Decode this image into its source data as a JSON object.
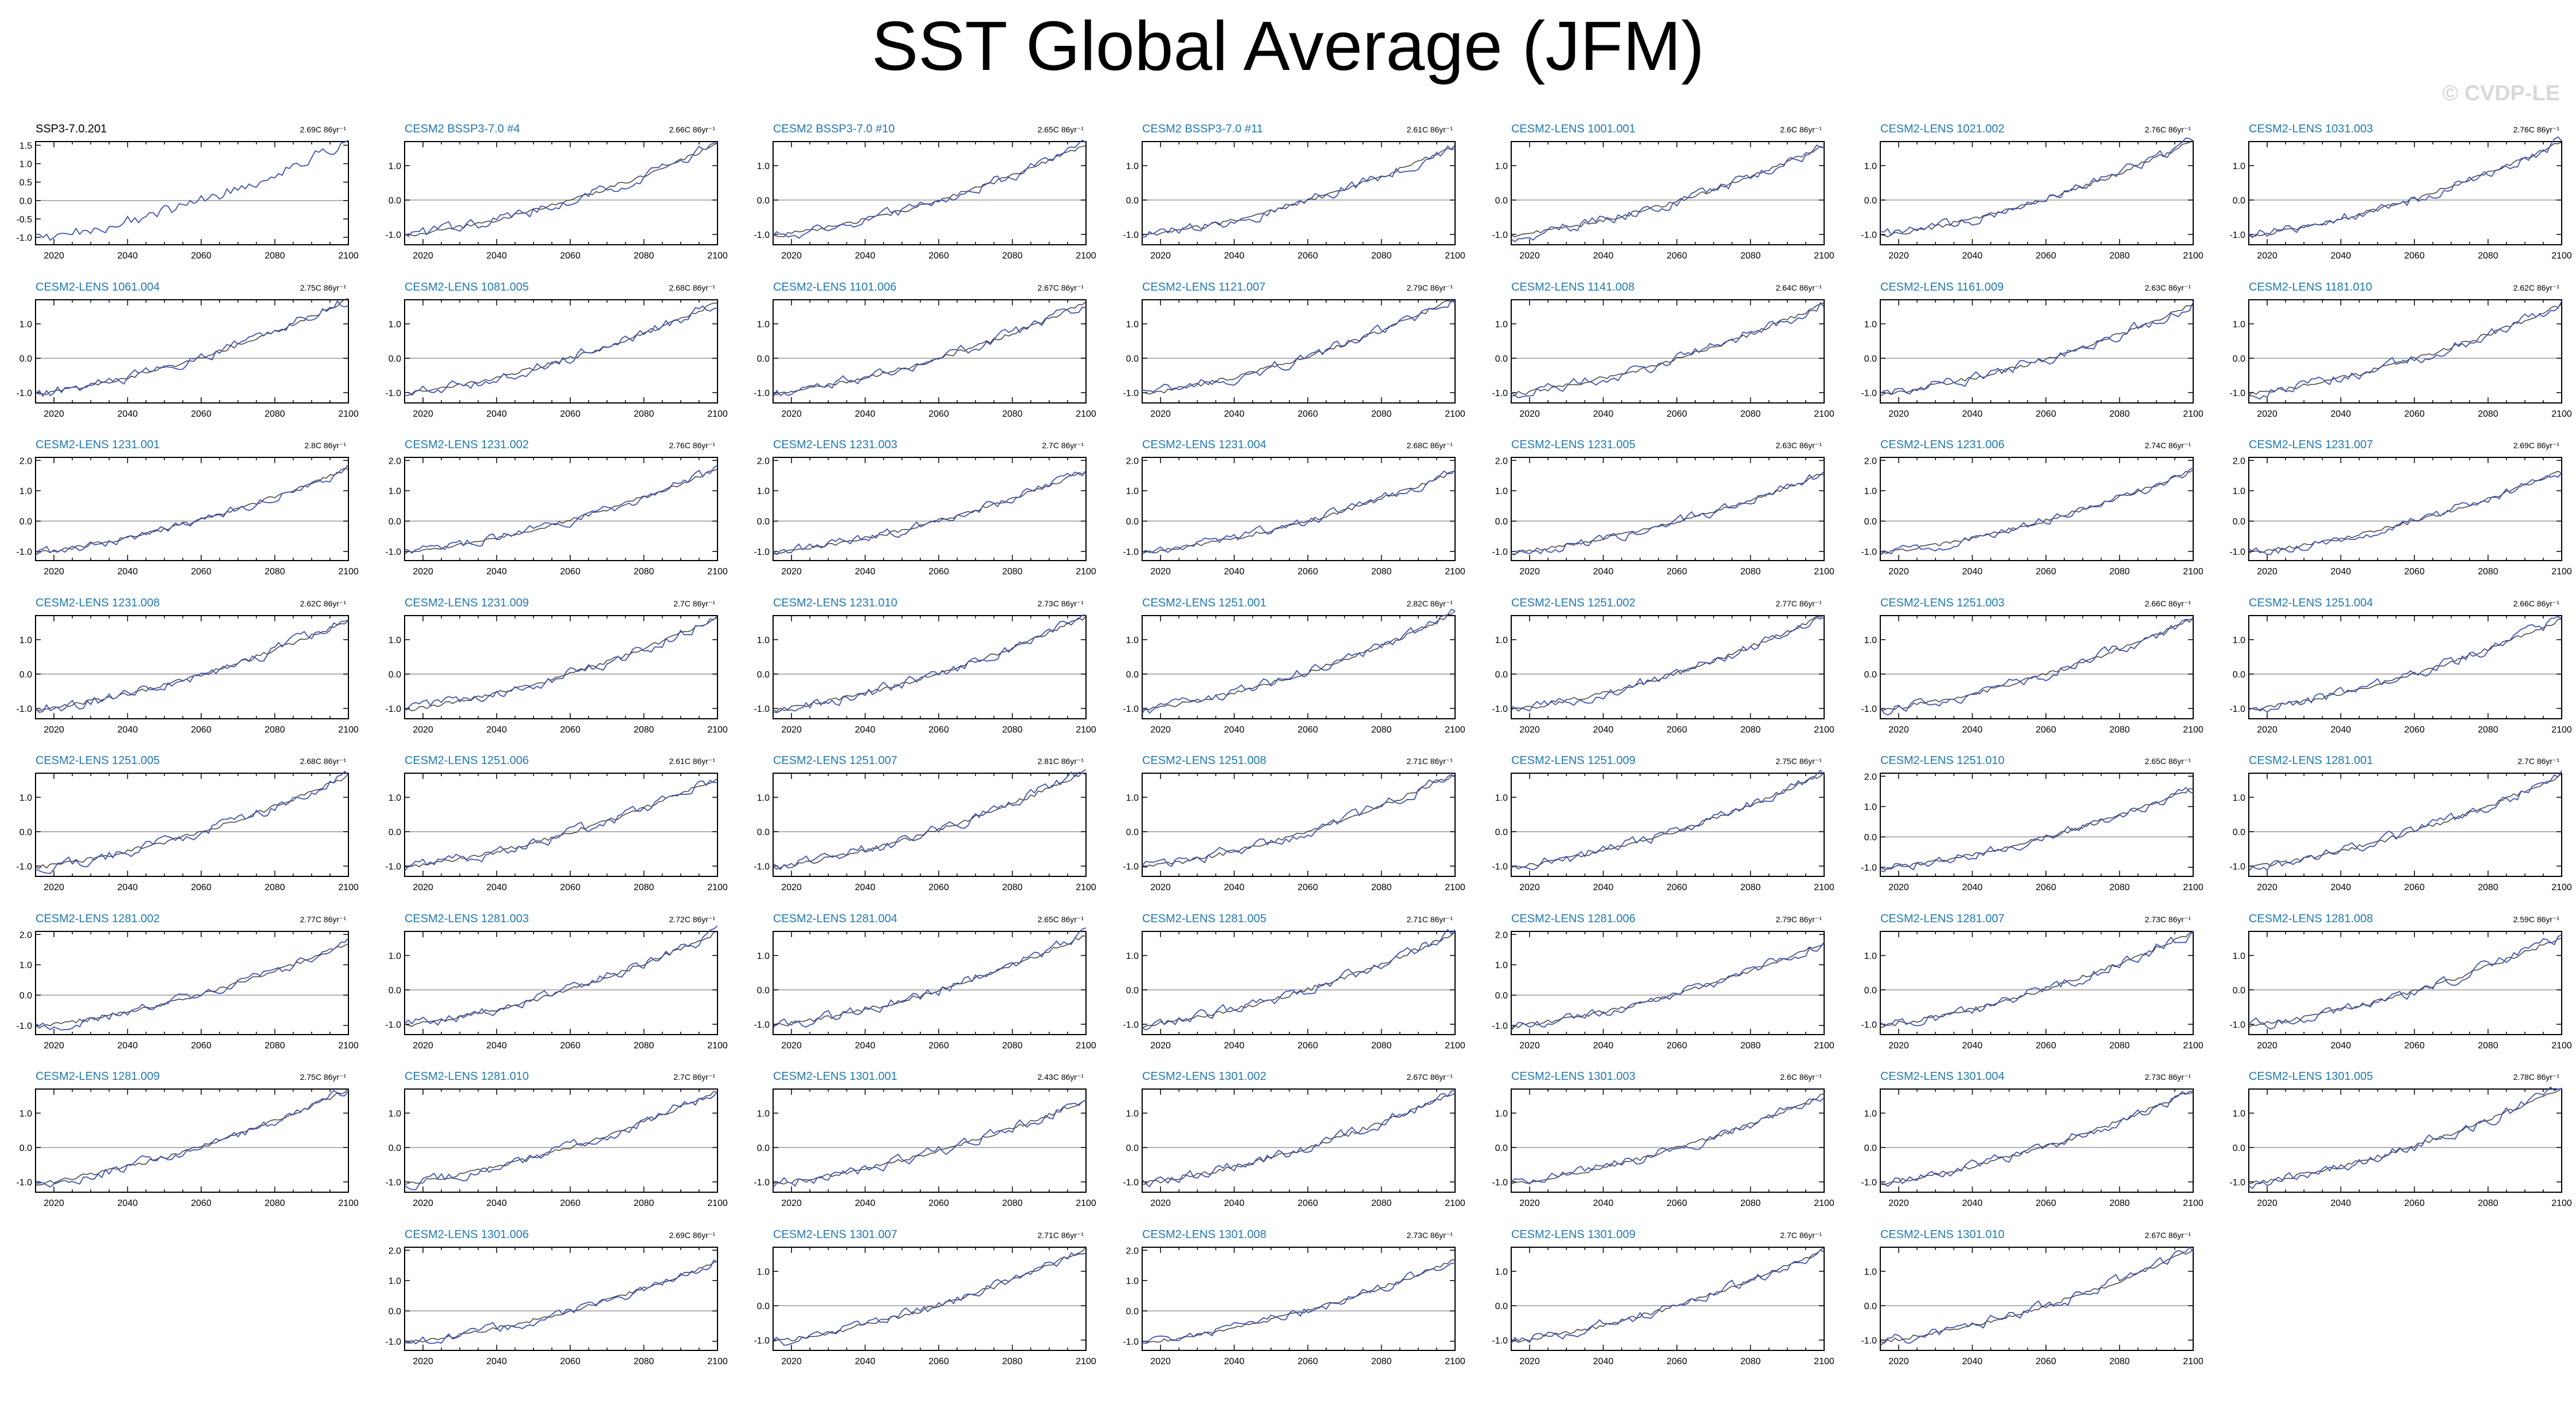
{
  "title": "SST Global Average (JFM)",
  "watermark": "© CVDP-LE",
  "colors": {
    "model_line": "#3f51b5",
    "mean_line": "#333333",
    "title_obs": "#000000",
    "title_model": "#1f78b4",
    "zero_line": "#999999"
  },
  "chart_data": {
    "type": "line",
    "panel_layout": {
      "columns": 7,
      "rows": 8
    },
    "x_ticks": [
      2020,
      2040,
      2060,
      2080,
      2100
    ],
    "xlim": [
      2015,
      2100
    ],
    "trend_unit": "C 86yr⁻¹",
    "series_names": [],
    "panels": [
      {
        "title": "SSP3-7.0.201",
        "trend": "2.69C",
        "yticks": [
          "1.5",
          "1.0",
          "0.5",
          "0.0",
          "-0.5",
          "-1.0"
        ],
        "ylim": [
          -1.2,
          1.6
        ],
        "obs": true
      },
      {
        "title": "CESM2 BSSP3-7.0 #4",
        "trend": "2.66C",
        "yticks": [
          "1.0",
          "0.0",
          "-1.0"
        ],
        "ylim": [
          -1.3,
          1.7
        ]
      },
      {
        "title": "CESM2 BSSP3-7.0 #10",
        "trend": "2.65C",
        "yticks": [
          "1.0",
          "0.0",
          "-1.0"
        ],
        "ylim": [
          -1.3,
          1.7
        ]
      },
      {
        "title": "CESM2 BSSP3-7.0 #11",
        "trend": "2.61C",
        "yticks": [
          "1.0",
          "0.0",
          "-1.0"
        ],
        "ylim": [
          -1.3,
          1.7
        ]
      },
      {
        "title": "CESM2-LENS 1001.001",
        "trend": "2.6C",
        "yticks": [
          "1.0",
          "0.0",
          "-1.0"
        ],
        "ylim": [
          -1.3,
          1.7
        ]
      },
      {
        "title": "CESM2-LENS 1021.002",
        "trend": "2.76C",
        "yticks": [
          "1.0",
          "0.0",
          "-1.0"
        ],
        "ylim": [
          -1.3,
          1.7
        ]
      },
      {
        "title": "CESM2-LENS 1031.003",
        "trend": "2.76C",
        "yticks": [
          "1.0",
          "0.0",
          "-1.0"
        ],
        "ylim": [
          -1.3,
          1.7
        ]
      },
      {
        "title": "CESM2-LENS 1061.004",
        "trend": "2.75C",
        "yticks": [
          "1.0",
          "0.0",
          "-1.0"
        ],
        "ylim": [
          -1.3,
          1.7
        ]
      },
      {
        "title": "CESM2-LENS 1081.005",
        "trend": "2.68C",
        "yticks": [
          "1.0",
          "0.0",
          "-1.0"
        ],
        "ylim": [
          -1.3,
          1.7
        ]
      },
      {
        "title": "CESM2-LENS 1101.006",
        "trend": "2.67C",
        "yticks": [
          "1.0",
          "0.0",
          "-1.0"
        ],
        "ylim": [
          -1.3,
          1.7
        ]
      },
      {
        "title": "CESM2-LENS 1121.007",
        "trend": "2.79C",
        "yticks": [
          "1.0",
          "0.0",
          "-1.0"
        ],
        "ylim": [
          -1.3,
          1.7
        ]
      },
      {
        "title": "CESM2-LENS 1141.008",
        "trend": "2.64C",
        "yticks": [
          "1.0",
          "0.0",
          "-1.0"
        ],
        "ylim": [
          -1.3,
          1.7
        ]
      },
      {
        "title": "CESM2-LENS 1161.009",
        "trend": "2.63C",
        "yticks": [
          "1.0",
          "0.0",
          "-1.0"
        ],
        "ylim": [
          -1.3,
          1.7
        ]
      },
      {
        "title": "CESM2-LENS 1181.010",
        "trend": "2.62C",
        "yticks": [
          "1.0",
          "0.0",
          "-1.0"
        ],
        "ylim": [
          -1.3,
          1.7
        ]
      },
      {
        "title": "CESM2-LENS 1231.001",
        "trend": "2.8C",
        "yticks": [
          "2.0",
          "1.0",
          "0.0",
          "-1.0"
        ],
        "ylim": [
          -1.3,
          2.1
        ]
      },
      {
        "title": "CESM2-LENS 1231.002",
        "trend": "2.76C",
        "yticks": [
          "2.0",
          "1.0",
          "0.0",
          "-1.0"
        ],
        "ylim": [
          -1.3,
          2.1
        ]
      },
      {
        "title": "CESM2-LENS 1231.003",
        "trend": "2.7C",
        "yticks": [
          "2.0",
          "1.0",
          "0.0",
          "-1.0"
        ],
        "ylim": [
          -1.3,
          2.1
        ]
      },
      {
        "title": "CESM2-LENS 1231.004",
        "trend": "2.68C",
        "yticks": [
          "2.0",
          "1.0",
          "0.0",
          "-1.0"
        ],
        "ylim": [
          -1.3,
          2.1
        ]
      },
      {
        "title": "CESM2-LENS 1231.005",
        "trend": "2.63C",
        "yticks": [
          "2.0",
          "1.0",
          "0.0",
          "-1.0"
        ],
        "ylim": [
          -1.3,
          2.1
        ]
      },
      {
        "title": "CESM2-LENS 1231.006",
        "trend": "2.74C",
        "yticks": [
          "2.0",
          "1.0",
          "0.0",
          "-1.0"
        ],
        "ylim": [
          -1.3,
          2.1
        ]
      },
      {
        "title": "CESM2-LENS 1231.007",
        "trend": "2.69C",
        "yticks": [
          "2.0",
          "1.0",
          "0.0",
          "-1.0"
        ],
        "ylim": [
          -1.3,
          2.1
        ]
      },
      {
        "title": "CESM2-LENS 1231.008",
        "trend": "2.62C",
        "yticks": [
          "1.0",
          "0.0",
          "-1.0"
        ],
        "ylim": [
          -1.3,
          1.7
        ]
      },
      {
        "title": "CESM2-LENS 1231.009",
        "trend": "2.7C",
        "yticks": [
          "1.0",
          "0.0",
          "-1.0"
        ],
        "ylim": [
          -1.3,
          1.7
        ]
      },
      {
        "title": "CESM2-LENS 1231.010",
        "trend": "2.73C",
        "yticks": [
          "1.0",
          "0.0",
          "-1.0"
        ],
        "ylim": [
          -1.3,
          1.7
        ]
      },
      {
        "title": "CESM2-LENS 1251.001",
        "trend": "2.82C",
        "yticks": [
          "1.0",
          "0.0",
          "-1.0"
        ],
        "ylim": [
          -1.3,
          1.7
        ]
      },
      {
        "title": "CESM2-LENS 1251.002",
        "trend": "2.77C",
        "yticks": [
          "1.0",
          "0.0",
          "-1.0"
        ],
        "ylim": [
          -1.3,
          1.7
        ]
      },
      {
        "title": "CESM2-LENS 1251.003",
        "trend": "2.66C",
        "yticks": [
          "1.0",
          "0.0",
          "-1.0"
        ],
        "ylim": [
          -1.3,
          1.7
        ]
      },
      {
        "title": "CESM2-LENS 1251.004",
        "trend": "2.66C",
        "yticks": [
          "1.0",
          "0.0",
          "-1.0"
        ],
        "ylim": [
          -1.3,
          1.7
        ]
      },
      {
        "title": "CESM2-LENS 1251.005",
        "trend": "2.68C",
        "yticks": [
          "1.0",
          "0.0",
          "-1.0"
        ],
        "ylim": [
          -1.3,
          1.7
        ]
      },
      {
        "title": "CESM2-LENS 1251.006",
        "trend": "2.61C",
        "yticks": [
          "1.0",
          "0.0",
          "-1.0"
        ],
        "ylim": [
          -1.3,
          1.7
        ]
      },
      {
        "title": "CESM2-LENS 1251.007",
        "trend": "2.81C",
        "yticks": [
          "1.0",
          "0.0",
          "-1.0"
        ],
        "ylim": [
          -1.3,
          1.7
        ]
      },
      {
        "title": "CESM2-LENS 1251.008",
        "trend": "2.71C",
        "yticks": [
          "1.0",
          "0.0",
          "-1.0"
        ],
        "ylim": [
          -1.3,
          1.7
        ]
      },
      {
        "title": "CESM2-LENS 1251.009",
        "trend": "2.75C",
        "yticks": [
          "1.0",
          "0.0",
          "-1.0"
        ],
        "ylim": [
          -1.3,
          1.7
        ]
      },
      {
        "title": "CESM2-LENS 1251.010",
        "trend": "2.65C",
        "yticks": [
          "2.0",
          "1.0",
          "0.0",
          "-1.0"
        ],
        "ylim": [
          -1.3,
          2.1
        ]
      },
      {
        "title": "CESM2-LENS 1281.001",
        "trend": "2.7C",
        "yticks": [
          "1.0",
          "0.0",
          "-1.0"
        ],
        "ylim": [
          -1.3,
          1.7
        ]
      },
      {
        "title": "CESM2-LENS 1281.002",
        "trend": "2.77C",
        "yticks": [
          "2.0",
          "1.0",
          "0.0",
          "-1.0"
        ],
        "ylim": [
          -1.3,
          2.1
        ]
      },
      {
        "title": "CESM2-LENS 1281.003",
        "trend": "2.72C",
        "yticks": [
          "1.0",
          "0.0",
          "-1.0"
        ],
        "ylim": [
          -1.3,
          1.7
        ]
      },
      {
        "title": "CESM2-LENS 1281.004",
        "trend": "2.65C",
        "yticks": [
          "1.0",
          "0.0",
          "-1.0"
        ],
        "ylim": [
          -1.3,
          1.7
        ]
      },
      {
        "title": "CESM2-LENS 1281.005",
        "trend": "2.71C",
        "yticks": [
          "1.0",
          "0.0",
          "-1.0"
        ],
        "ylim": [
          -1.3,
          1.7
        ]
      },
      {
        "title": "CESM2-LENS 1281.006",
        "trend": "2.79C",
        "yticks": [
          "2.0",
          "1.0",
          "0.0",
          "-1.0"
        ],
        "ylim": [
          -1.3,
          2.1
        ]
      },
      {
        "title": "CESM2-LENS 1281.007",
        "trend": "2.73C",
        "yticks": [
          "1.0",
          "0.0",
          "-1.0"
        ],
        "ylim": [
          -1.3,
          1.7
        ]
      },
      {
        "title": "CESM2-LENS 1281.008",
        "trend": "2.59C",
        "yticks": [
          "1.0",
          "0.0",
          "-1.0"
        ],
        "ylim": [
          -1.3,
          1.7
        ]
      },
      {
        "title": "CESM2-LENS 1281.009",
        "trend": "2.75C",
        "yticks": [
          "1.0",
          "0.0",
          "-1.0"
        ],
        "ylim": [
          -1.3,
          1.7
        ]
      },
      {
        "title": "CESM2-LENS 1281.010",
        "trend": "2.7C",
        "yticks": [
          "1.0",
          "0.0",
          "-1.0"
        ],
        "ylim": [
          -1.3,
          1.7
        ]
      },
      {
        "title": "CESM2-LENS 1301.001",
        "trend": "2.43C",
        "yticks": [
          "1.0",
          "0.0",
          "-1.0"
        ],
        "ylim": [
          -1.3,
          1.7
        ]
      },
      {
        "title": "CESM2-LENS 1301.002",
        "trend": "2.67C",
        "yticks": [
          "1.0",
          "0.0",
          "-1.0"
        ],
        "ylim": [
          -1.3,
          1.7
        ]
      },
      {
        "title": "CESM2-LENS 1301.003",
        "trend": "2.6C",
        "yticks": [
          "1.0",
          "0.0",
          "-1.0"
        ],
        "ylim": [
          -1.3,
          1.7
        ]
      },
      {
        "title": "CESM2-LENS 1301.004",
        "trend": "2.73C",
        "yticks": [
          "1.0",
          "0.0",
          "-1.0"
        ],
        "ylim": [
          -1.3,
          1.7
        ]
      },
      {
        "title": "CESM2-LENS 1301.005",
        "trend": "2.78C",
        "yticks": [
          "1.0",
          "0.0",
          "-1.0"
        ],
        "ylim": [
          -1.3,
          1.7
        ]
      },
      null,
      {
        "title": "CESM2-LENS 1301.006",
        "trend": "2.69C",
        "yticks": [
          "2.0",
          "1.0",
          "0.0",
          "-1.0"
        ],
        "ylim": [
          -1.3,
          2.1
        ]
      },
      {
        "title": "CESM2-LENS 1301.007",
        "trend": "2.71C",
        "yticks": [
          "1.0",
          "0.0",
          "-1.0"
        ],
        "ylim": [
          -1.3,
          1.7
        ]
      },
      {
        "title": "CESM2-LENS 1301.008",
        "trend": "2.73C",
        "yticks": [
          "2.0",
          "1.0",
          "0.0",
          "-1.0"
        ],
        "ylim": [
          -1.3,
          2.1
        ]
      },
      {
        "title": "CESM2-LENS 1301.009",
        "trend": "2.7C",
        "yticks": [
          "1.0",
          "0.0",
          "-1.0"
        ],
        "ylim": [
          -1.3,
          1.7
        ]
      },
      {
        "title": "CESM2-LENS 1301.010",
        "trend": "2.67C",
        "yticks": [
          "1.0",
          "0.0",
          "-1.0"
        ],
        "ylim": [
          -1.3,
          1.7
        ]
      },
      null
    ]
  }
}
